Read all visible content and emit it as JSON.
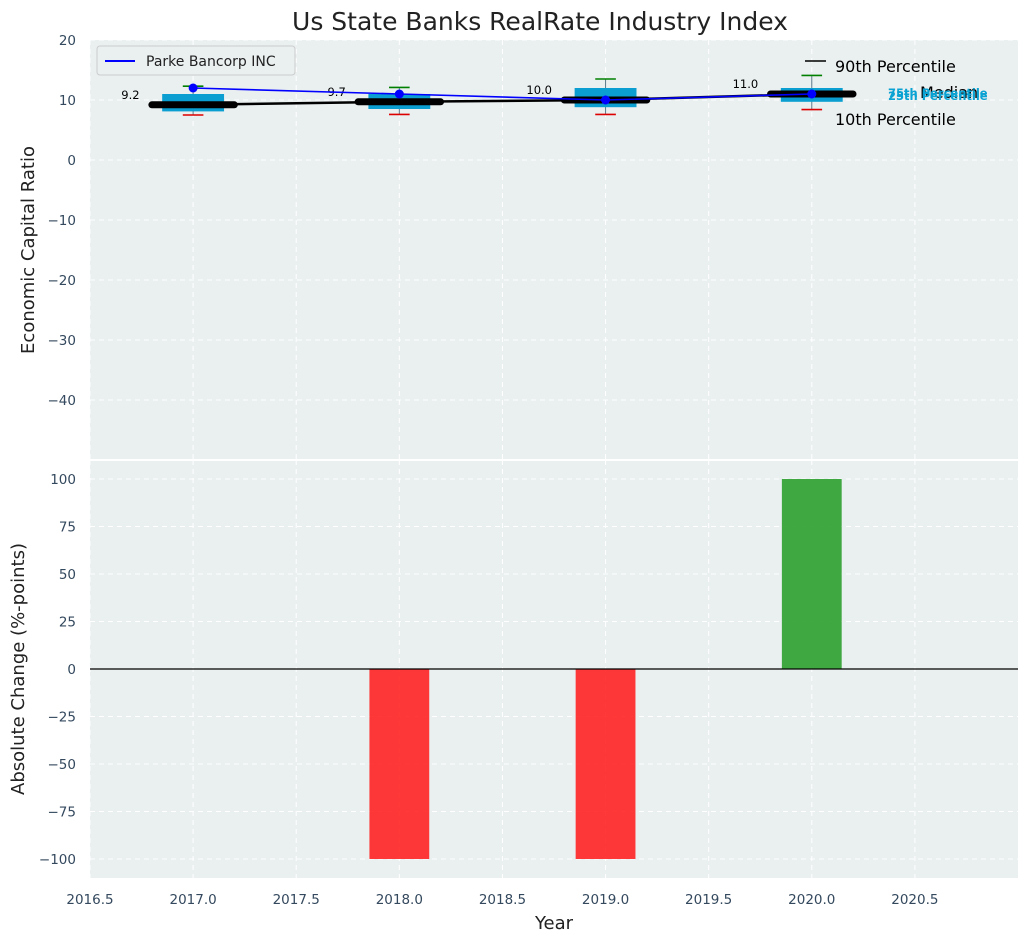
{
  "chart_data": [
    {
      "type": "box",
      "title": "Us State Banks RealRate Industry Index",
      "ylabel": "Economic Capital Ratio",
      "xlim": [
        2016.5,
        2021.0
      ],
      "ylim": [
        -50,
        20
      ],
      "yticks": [
        20,
        10,
        0,
        -10,
        -20,
        -30,
        -40
      ],
      "grid": true,
      "years": [
        2017,
        2018,
        2019,
        2020
      ],
      "boxes": [
        {
          "year": 2017,
          "p10": 7.5,
          "p25": 8.1,
          "median": 9.2,
          "p75": 11.0,
          "p90": 12.3,
          "median_label": "9.2"
        },
        {
          "year": 2018,
          "p10": 7.6,
          "p25": 8.5,
          "median": 9.7,
          "p75": 11.0,
          "p90": 12.1,
          "median_label": "9.7"
        },
        {
          "year": 2019,
          "p10": 7.6,
          "p25": 8.8,
          "median": 10.0,
          "p75": 12.0,
          "p90": 13.5,
          "median_label": "10.0"
        },
        {
          "year": 2020,
          "p10": 8.4,
          "p25": 9.7,
          "median": 11.0,
          "p75": 12.0,
          "p90": 14.1,
          "median_label": "11.0"
        }
      ],
      "series": [
        {
          "name": "Parke Bancorp INC",
          "color": "#0000ff",
          "x": [
            2017,
            2018,
            2019,
            2020
          ],
          "values": [
            12.0,
            11.0,
            10.0,
            11.0
          ]
        }
      ],
      "legend": {
        "position": "top-left",
        "entries": [
          "Parke Bancorp INC"
        ]
      },
      "percentile_labels": {
        "p90": "90th Percentile",
        "median": "Median",
        "p10": "10th Percentile",
        "p75": "75th Percentile",
        "p25": "25th Percentile"
      }
    },
    {
      "type": "bar",
      "ylabel": "Absolute Change (%-points)",
      "xlabel": "Year",
      "xlim": [
        2016.5,
        2021.0
      ],
      "ylim": [
        -110,
        110
      ],
      "xticks": [
        "2016.5",
        "2017.0",
        "2017.5",
        "2018.0",
        "2018.5",
        "2019.0",
        "2019.5",
        "2020.0",
        "2020.5"
      ],
      "yticks": [
        100,
        75,
        50,
        25,
        0,
        -25,
        -50,
        -75,
        -100
      ],
      "grid": true,
      "x": [
        2017,
        2018,
        2019,
        2020
      ],
      "values": [
        0,
        -100,
        -100,
        100
      ],
      "positive_color": "#2ca02c",
      "negative_color": "#ff2222"
    }
  ],
  "colors": {
    "background": "#eaeff0",
    "box_fill": "#0a9fd0",
    "median_line": "#000000",
    "whisker_high": "#008000",
    "whisker_low": "#dd0000"
  }
}
